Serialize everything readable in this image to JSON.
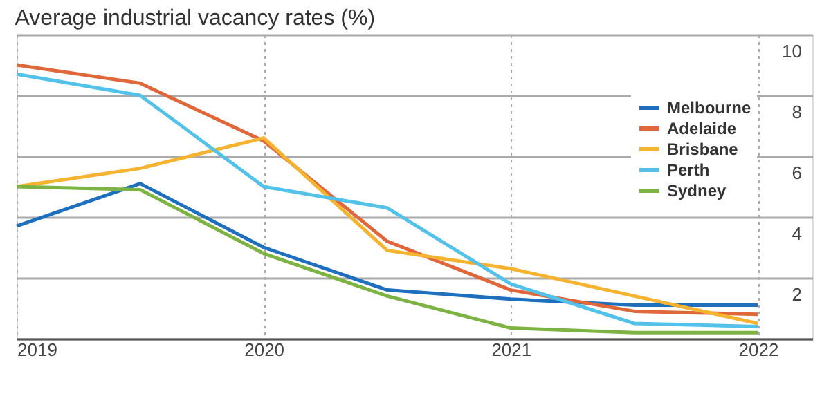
{
  "chart_data": {
    "type": "line",
    "title": "Average industrial vacancy rates (%)",
    "x": [
      2019,
      2019.5,
      2020,
      2020.5,
      2021,
      2021.5,
      2022
    ],
    "series": [
      {
        "name": "Melbourne",
        "color": "#1f6fbf",
        "values": [
          3.7,
          5.1,
          3.0,
          1.6,
          1.3,
          1.1,
          1.1
        ]
      },
      {
        "name": "Adelaide",
        "color": "#e0673a",
        "values": [
          9.0,
          8.4,
          6.5,
          3.2,
          1.6,
          0.9,
          0.8
        ]
      },
      {
        "name": "Brisbane",
        "color": "#f5b330",
        "values": [
          5.0,
          5.6,
          6.6,
          2.9,
          2.3,
          1.4,
          0.5
        ]
      },
      {
        "name": "Perth",
        "color": "#52c2ea",
        "values": [
          8.7,
          8.0,
          5.0,
          4.3,
          1.8,
          0.5,
          0.4
        ]
      },
      {
        "name": "Sydney",
        "color": "#7cb342",
        "values": [
          5.0,
          4.9,
          2.8,
          1.4,
          0.35,
          0.2,
          0.2
        ]
      }
    ],
    "xlim": [
      2019,
      2022.22
    ],
    "xticks": [
      2019,
      2020,
      2021,
      2022
    ],
    "ylim": [
      0,
      10
    ],
    "yticks": [
      {
        "value": 0,
        "label": null
      },
      2,
      4,
      6,
      8,
      10
    ],
    "grid": true,
    "legend": "top right",
    "marker": "none",
    "line_style": "solid"
  }
}
